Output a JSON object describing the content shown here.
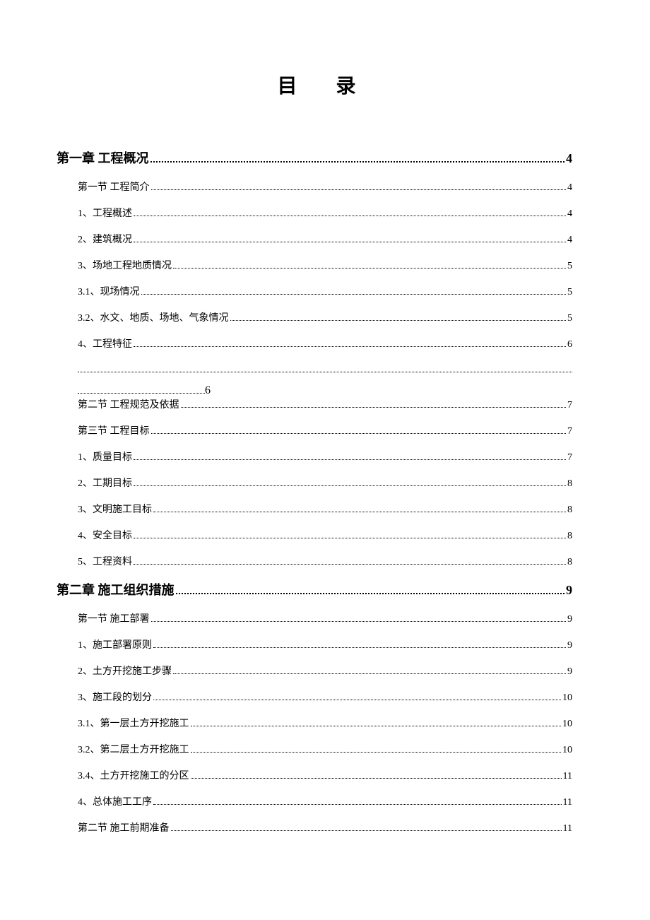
{
  "title": "目  录",
  "entries": [
    {
      "type": "chapter",
      "label": "第一章   工程概况",
      "page": "4"
    },
    {
      "type": "section",
      "label": "第一节   工程简介 ",
      "page": "4"
    },
    {
      "type": "sub",
      "label": "1、工程概述 ",
      "page": "4"
    },
    {
      "type": "sub",
      "label": "2、建筑概况",
      "page": "4"
    },
    {
      "type": "sub",
      "label": "3、场地工程地质情况",
      "page": "5"
    },
    {
      "type": "sub",
      "label": "3.1、现场情况 ",
      "page": "5"
    },
    {
      "type": "sub",
      "label": "3.2、水文、地质、场地、气象情况 ",
      "page": "5"
    },
    {
      "type": "sub",
      "label": "4、工程特征 ",
      "page": "6"
    },
    {
      "type": "split",
      "label": "",
      "page": "6"
    },
    {
      "type": "section",
      "label": "第二节   工程规范及依据 ",
      "page": "7"
    },
    {
      "type": "section",
      "label": "第三节   工程目标 ",
      "page": "7"
    },
    {
      "type": "sub",
      "label": "1、质量目标 ",
      "page": "7"
    },
    {
      "type": "sub",
      "label": "2、工期目标 ",
      "page": "8"
    },
    {
      "type": "sub",
      "label": "3、文明施工目标 ",
      "page": "8"
    },
    {
      "type": "sub",
      "label": "4、安全目标 ",
      "page": "8"
    },
    {
      "type": "sub",
      "label": "5、工程资料 ",
      "page": "8"
    },
    {
      "type": "chapter",
      "label": "第二章    施工组织措施",
      "page": "9"
    },
    {
      "type": "section",
      "label": "第一节    施工部署 ",
      "page": "9"
    },
    {
      "type": "sub",
      "label": "1、施工部署原则 ",
      "page": "9"
    },
    {
      "type": "sub",
      "label": "2、土方开挖施工步骤 ",
      "page": "9"
    },
    {
      "type": "sub",
      "label": "3、施工段的划分 ",
      "page": "10"
    },
    {
      "type": "sub",
      "label": "3.1、第一层土方开挖施工 ",
      "page": "10"
    },
    {
      "type": "sub",
      "label": "3.2、第二层土方开挖施工 ",
      "page": "10"
    },
    {
      "type": "sub",
      "label": "3.4、土方开挖施工的分区 ",
      "page": "11"
    },
    {
      "type": "sub",
      "label": "4、总体施工工序 ",
      "page": "11"
    },
    {
      "type": "section",
      "label": "第二节    施工前期准备 ",
      "page": "11"
    }
  ]
}
